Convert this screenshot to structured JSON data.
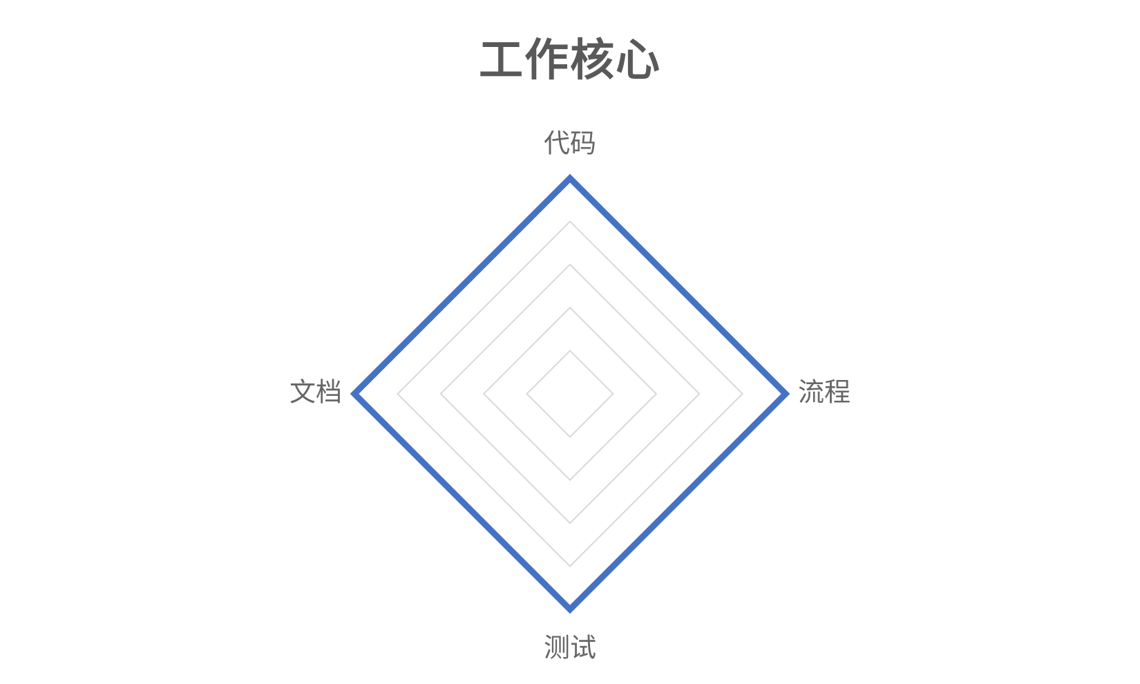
{
  "chart_data": {
    "type": "radar",
    "title": "工作核心",
    "categories": [
      "代码",
      "流程",
      "测试",
      "文档"
    ],
    "series": [
      {
        "values": [
          5,
          5,
          5,
          5
        ]
      }
    ],
    "rmax": 5,
    "grid_levels": 5,
    "colors": {
      "series": "#4472C4",
      "grid": "#D9D9D9",
      "label": "#666666",
      "title": "#595959"
    }
  }
}
